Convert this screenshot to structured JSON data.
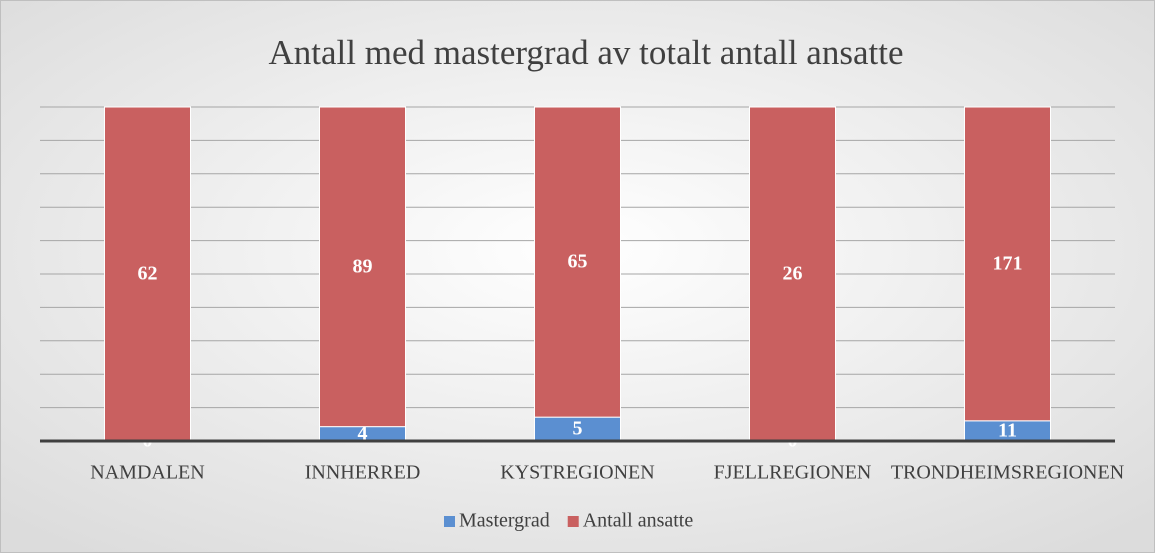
{
  "chart_data": {
    "type": "bar",
    "stacking": "percent",
    "title": "Antall med mastergrad av totalt antall ansatte",
    "categories": [
      "NAMDALEN",
      "INNHERRED",
      "KYSTREGIONEN",
      "FJELLREGIONEN",
      "TRONDHEIMSREGIONEN"
    ],
    "series": [
      {
        "name": "Mastergrad",
        "color": "#5b8fd1",
        "values": [
          0,
          4,
          5,
          0,
          11
        ]
      },
      {
        "name": "Antall ansatte",
        "color": "#c96060",
        "values": [
          62,
          89,
          65,
          26,
          171
        ]
      }
    ],
    "ylim": [
      0,
      100
    ],
    "yticks": [
      0,
      10,
      20,
      30,
      40,
      50,
      60,
      70,
      80,
      90,
      100
    ],
    "grid": true,
    "legend": "bottom"
  }
}
